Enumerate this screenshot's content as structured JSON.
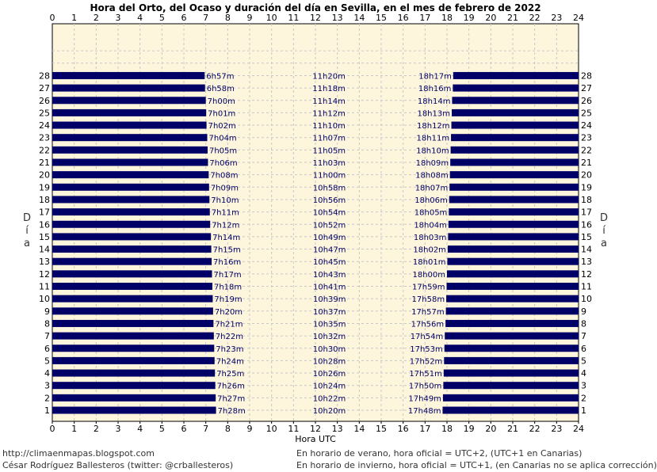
{
  "chart_data": {
    "type": "bar",
    "title": "Hora del Orto, del Ocaso y duración del día en Sevilla, en el mes de febrero de 2022",
    "xlabel": "Hora UTC",
    "ylabel": "Día",
    "xlim": [
      0,
      24
    ],
    "x_ticks": [
      "0",
      "1",
      "2",
      "3",
      "4",
      "5",
      "6",
      "7",
      "8",
      "9",
      "10",
      "11",
      "12",
      "13",
      "14",
      "15",
      "16",
      "17",
      "18",
      "19",
      "20",
      "21",
      "22",
      "23",
      "24"
    ],
    "days": [
      1,
      2,
      3,
      4,
      5,
      6,
      7,
      8,
      9,
      10,
      11,
      12,
      13,
      14,
      15,
      16,
      17,
      18,
      19,
      20,
      21,
      22,
      23,
      24,
      25,
      26,
      27,
      28
    ],
    "sunrise": [
      "7h28m",
      "7h27m",
      "7h26m",
      "7h25m",
      "7h24m",
      "7h23m",
      "7h22m",
      "7h21m",
      "7h20m",
      "7h19m",
      "7h18m",
      "7h17m",
      "7h16m",
      "7h15m",
      "7h14m",
      "7h12m",
      "7h11m",
      "7h10m",
      "7h09m",
      "7h08m",
      "7h06m",
      "7h05m",
      "7h04m",
      "7h02m",
      "7h01m",
      "7h00m",
      "6h58m",
      "6h57m"
    ],
    "day_length": [
      "10h20m",
      "10h22m",
      "10h24m",
      "10h26m",
      "10h28m",
      "10h30m",
      "10h32m",
      "10h35m",
      "10h37m",
      "10h39m",
      "10h41m",
      "10h43m",
      "10h45m",
      "10h47m",
      "10h49m",
      "10h52m",
      "10h54m",
      "10h56m",
      "10h58m",
      "11h00m",
      "11h03m",
      "11h05m",
      "11h07m",
      "11h10m",
      "11h12m",
      "11h14m",
      "11h18m",
      "11h20m"
    ],
    "sunset": [
      "17h48m",
      "17h49m",
      "17h50m",
      "17h51m",
      "17h52m",
      "17h53m",
      "17h54m",
      "17h56m",
      "17h57m",
      "17h58m",
      "17h59m",
      "18h00m",
      "18h01m",
      "18h02m",
      "18h03m",
      "18h04m",
      "18h05m",
      "18h06m",
      "18h07m",
      "18h08m",
      "18h09m",
      "18h10m",
      "18h11m",
      "18h12m",
      "18h13m",
      "18h14m",
      "18h16m",
      "18h17m"
    ],
    "grid": true,
    "colors": {
      "bar": "#000066",
      "plot_bg": "#fdf5dc",
      "grid": "#c8c8c8"
    }
  },
  "footer": {
    "url": "http://climaenmapas.blogspot.com",
    "author": "César Rodríguez Ballesteros (twitter: @crballesteros)",
    "note_summer": "En horario de verano, hora oficial = UTC+2, (UTC+1 en Canarias)",
    "note_winter": "En horario de invierno, hora oficial = UTC+1, (en Canarias no se aplica corrección)"
  }
}
